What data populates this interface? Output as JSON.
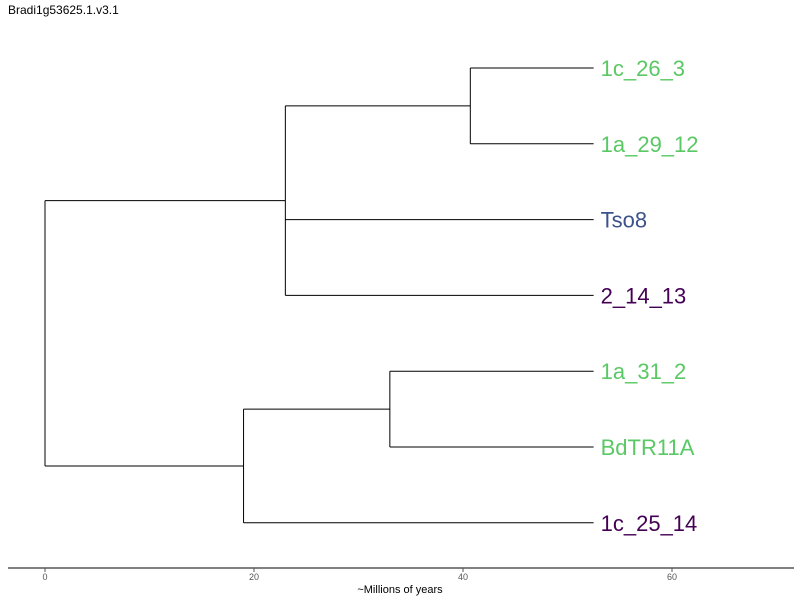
{
  "title": "Bradi1g53625.1.v3.1",
  "axis": {
    "label": "~Millions of years",
    "ticks": [
      0,
      20,
      40,
      60
    ],
    "range": [
      0,
      72
    ]
  },
  "colors": {
    "green": "#5ac864",
    "blue": "#3b528b",
    "purple": "#440154"
  },
  "tree": {
    "root_age": 0,
    "branches": [
      {
        "id": "n_root",
        "x": 0,
        "children": [
          "n_upper",
          "n_lower"
        ]
      },
      {
        "id": "n_upper",
        "x": 23,
        "children": [
          "n_1c1a",
          "leaf_tso8",
          "leaf_2_14_13"
        ]
      },
      {
        "id": "n_1c1a",
        "x": 40.7,
        "children": [
          "leaf_1c_26_3",
          "leaf_1a_29_12"
        ]
      },
      {
        "id": "n_lower",
        "x": 19,
        "children": [
          "n_1a31",
          "leaf_1c_25_14"
        ]
      },
      {
        "id": "n_1a31",
        "x": 33,
        "children": [
          "leaf_1a_31_2",
          "leaf_bdtr11a"
        ]
      }
    ],
    "leaves": [
      {
        "id": "leaf_1c_26_3",
        "label": "1c_26_3",
        "x": 52.5,
        "color": "#5ac864"
      },
      {
        "id": "leaf_1a_29_12",
        "label": "1a_29_12",
        "x": 52.5,
        "color": "#5ac864"
      },
      {
        "id": "leaf_tso8",
        "label": "Tso8",
        "x": 52.5,
        "color": "#3b528b"
      },
      {
        "id": "leaf_2_14_13",
        "label": "2_14_13",
        "x": 52.5,
        "color": "#440154"
      },
      {
        "id": "leaf_1a_31_2",
        "label": "1a_31_2",
        "x": 52.5,
        "color": "#5ac864"
      },
      {
        "id": "leaf_bdtr11a",
        "label": "BdTR11A",
        "x": 52.5,
        "color": "#5ac864"
      },
      {
        "id": "leaf_1c_25_14",
        "label": "1c_25_14",
        "x": 52.5,
        "color": "#440154"
      }
    ]
  }
}
